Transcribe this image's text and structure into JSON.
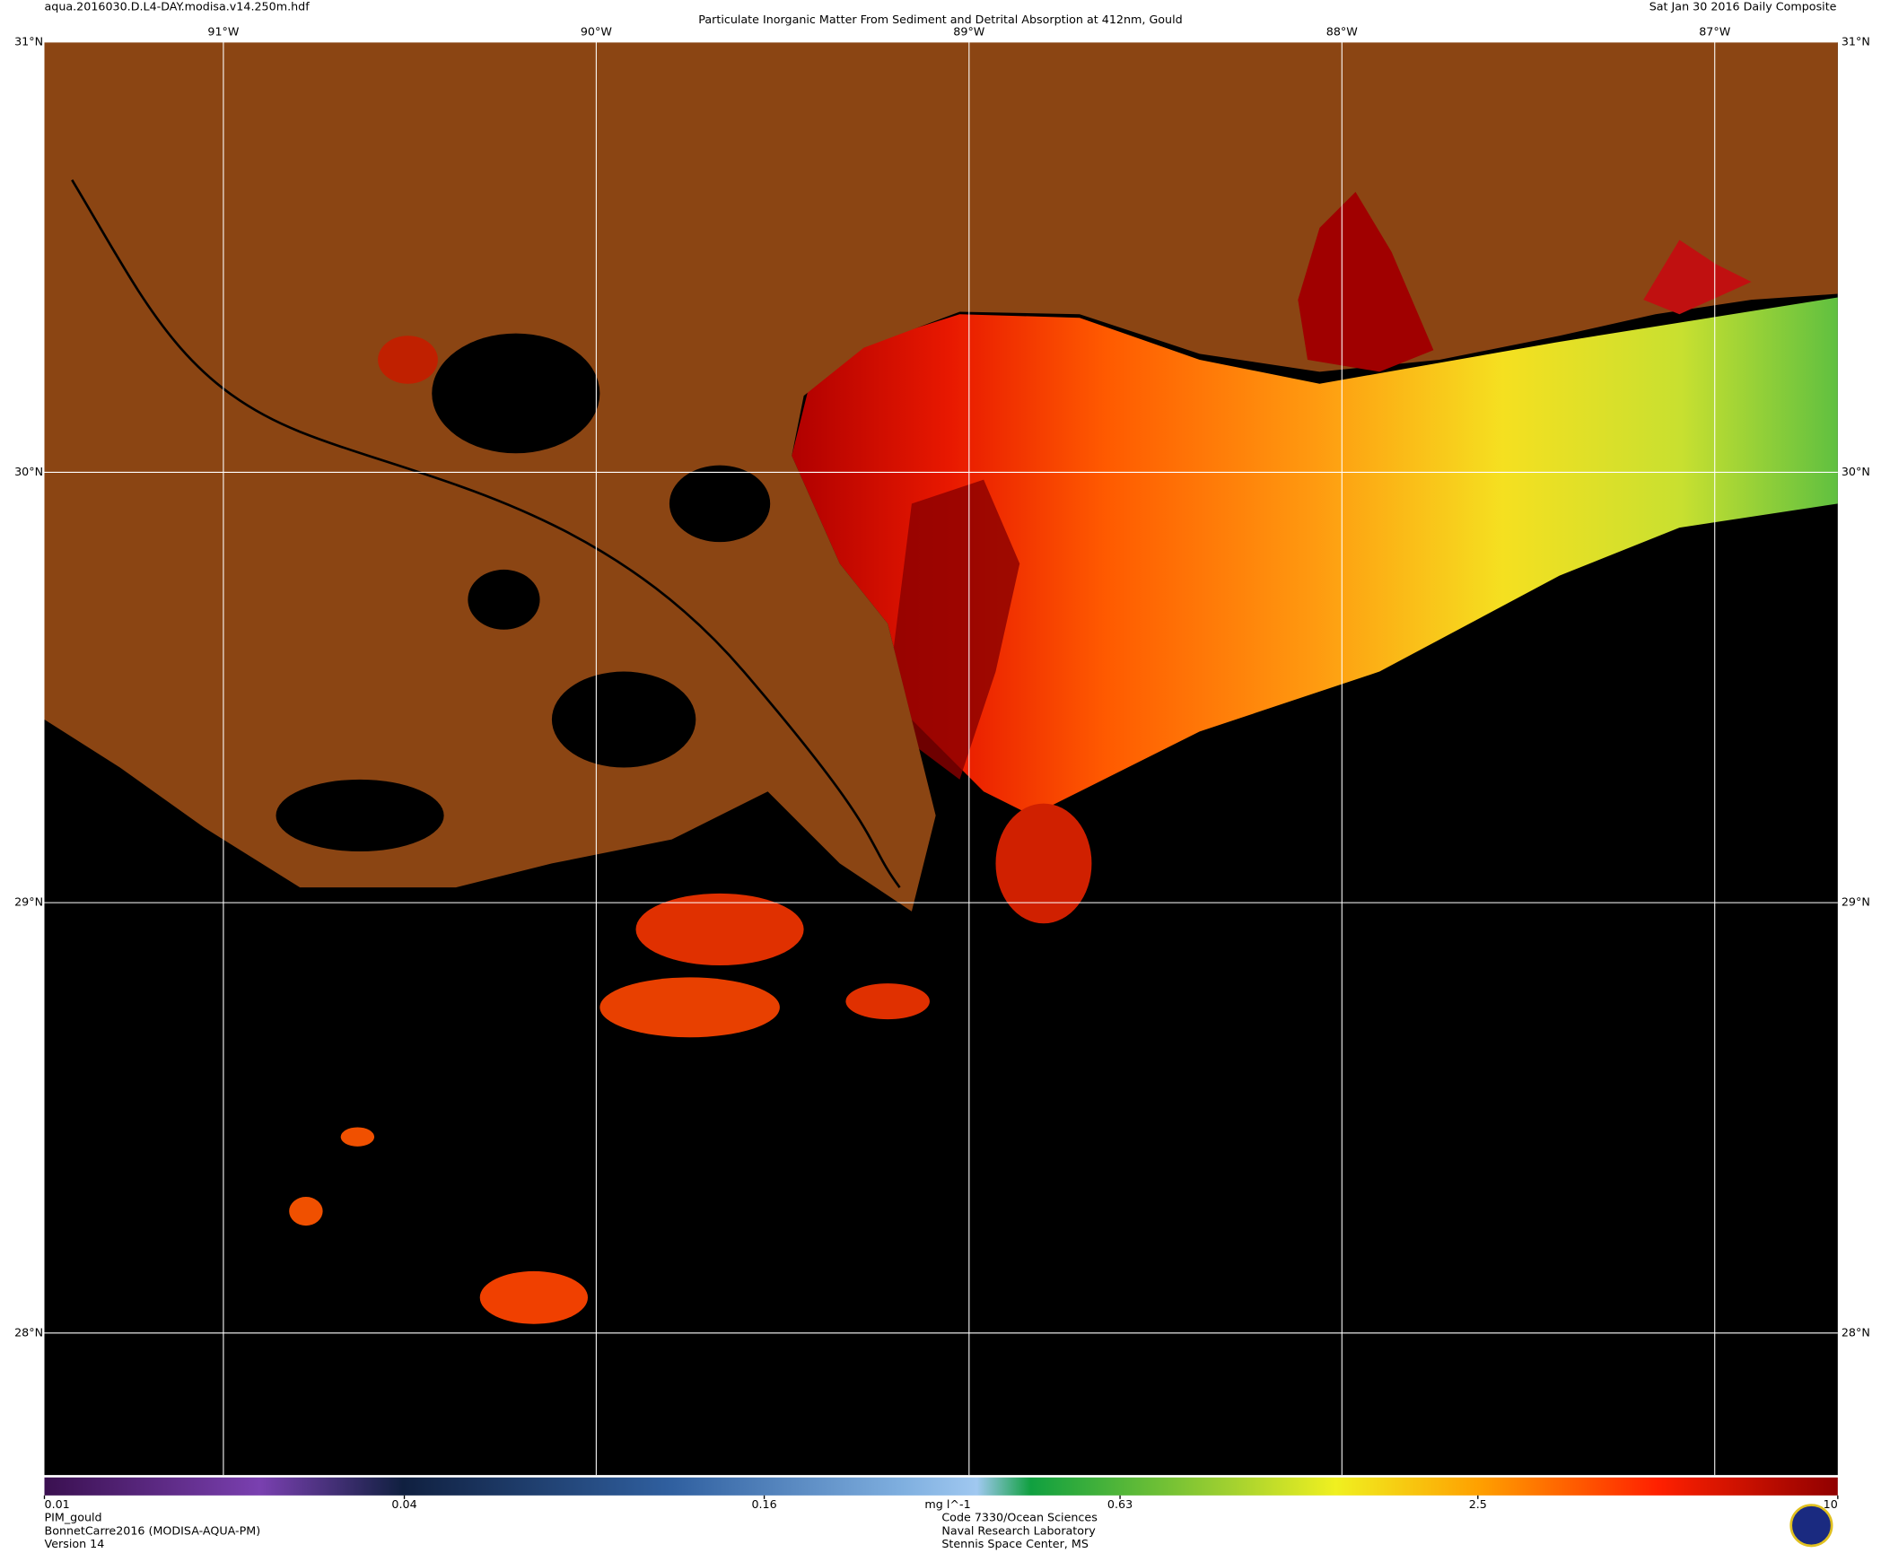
{
  "header": {
    "file": "aqua.2016030.D.L4-DAY.modisa.v14.250m.hdf",
    "title": "Particulate Inorganic Matter From Sediment and Detrital Absorption at 412nm, Gould",
    "date": "Sat Jan 30 2016 Daily Composite"
  },
  "map": {
    "lonlim": [
      -91.48,
      -86.67
    ],
    "latlim": [
      27.67,
      31.0
    ],
    "lon_lines": [
      {
        "value": -91,
        "label": "91°W"
      },
      {
        "value": -90,
        "label": "90°W"
      },
      {
        "value": -89,
        "label": "89°W"
      },
      {
        "value": -88,
        "label": "88°W"
      },
      {
        "value": -87,
        "label": "87°W"
      }
    ],
    "lat_lines": [
      {
        "value": 31,
        "label": "31°N"
      },
      {
        "value": 30,
        "label": "30°N"
      },
      {
        "value": 29,
        "label": "29°N"
      },
      {
        "value": 28,
        "label": "28°N"
      }
    ]
  },
  "colorbar": {
    "range": [
      0.01,
      10
    ],
    "scale": "log",
    "ticks": [
      0.01,
      0.04,
      0.16,
      0.63,
      2.5,
      10
    ],
    "unit": "mg l^-1"
  },
  "footer": {
    "left": [
      "PIM_gould",
      "BonnetCarre2016 (MODISA-AQUA-PM)",
      "Version 14"
    ],
    "center": [
      "Code 7330/Ocean Sciences",
      "Naval Research Laboratory",
      "Stennis Space Center, MS"
    ]
  }
}
